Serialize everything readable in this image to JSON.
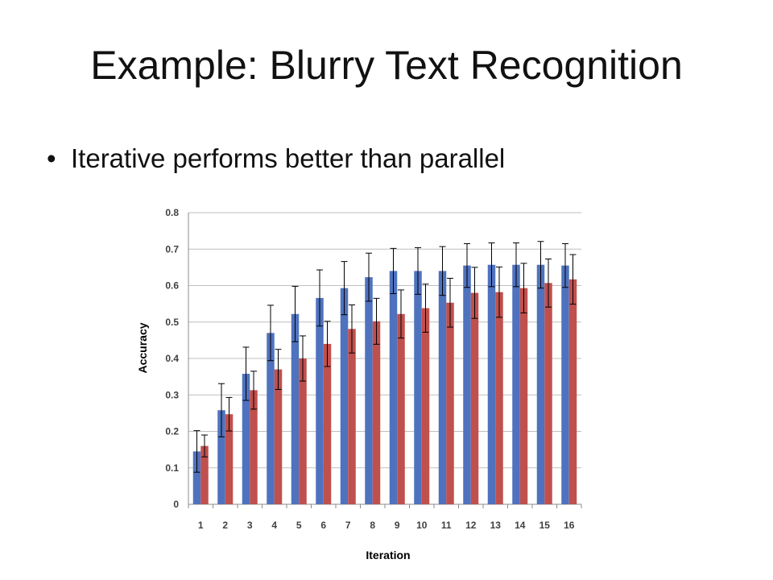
{
  "slide": {
    "title": "Example: Blurry Text Recognition",
    "bullet": "Iterative performs better than parallel"
  },
  "chart_data": {
    "type": "bar",
    "xlabel": "Iteration",
    "ylabel": "Accuracy",
    "ylim": [
      0,
      0.8
    ],
    "yticks": [
      "0",
      "0.1",
      "0.2",
      "0.3",
      "0.4",
      "0.5",
      "0.6",
      "0.7",
      "0.8"
    ],
    "categories": [
      "1",
      "2",
      "3",
      "4",
      "5",
      "6",
      "7",
      "8",
      "9",
      "10",
      "11",
      "12",
      "13",
      "14",
      "15",
      "16"
    ],
    "grid": true,
    "legend": "none",
    "series": [
      {
        "color": "#4f72be",
        "values": [
          0.145,
          0.258,
          0.358,
          0.47,
          0.522,
          0.566,
          0.593,
          0.623,
          0.64,
          0.64,
          0.64,
          0.655,
          0.657,
          0.657,
          0.657,
          0.655
        ],
        "error": [
          0.057,
          0.073,
          0.073,
          0.076,
          0.076,
          0.077,
          0.073,
          0.066,
          0.062,
          0.064,
          0.067,
          0.06,
          0.06,
          0.06,
          0.064,
          0.06
        ]
      },
      {
        "color": "#c0504d",
        "values": [
          0.16,
          0.247,
          0.313,
          0.37,
          0.4,
          0.44,
          0.481,
          0.502,
          0.522,
          0.538,
          0.553,
          0.58,
          0.582,
          0.593,
          0.607,
          0.617
        ],
        "error": [
          0.03,
          0.046,
          0.052,
          0.055,
          0.062,
          0.062,
          0.066,
          0.063,
          0.066,
          0.066,
          0.067,
          0.07,
          0.069,
          0.068,
          0.066,
          0.068
        ]
      }
    ]
  }
}
